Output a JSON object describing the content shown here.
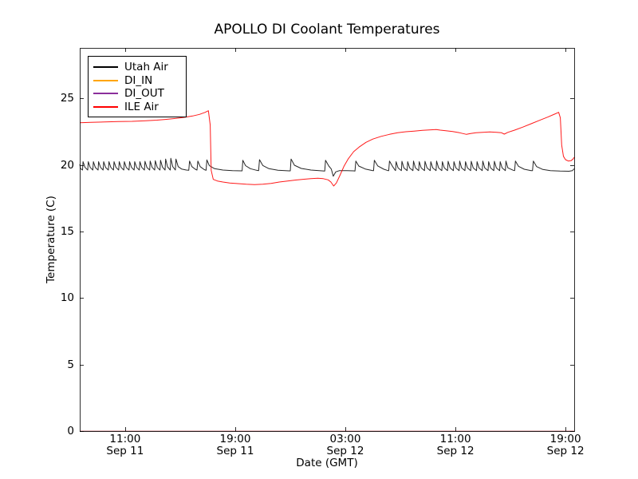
{
  "window": {
    "background": "#ffffff"
  },
  "chart_data": {
    "type": "line",
    "title": "APOLLO DI Coolant Temperatures",
    "xlabel": "Date (GMT)",
    "ylabel": "Temperature (C)",
    "x_units": "hours since Sep 11 00:00 GMT",
    "y_units": "degrees C",
    "xlim": [
      7.7,
      43.63
    ],
    "ylim": [
      0,
      28.8
    ],
    "grid": false,
    "frame_color": "#000000",
    "legend": {
      "position": "upper-left",
      "entries": [
        "Utah Air",
        "DI_IN",
        "DI_OUT",
        "ILE Air"
      ]
    },
    "x_ticks": [
      {
        "t": 11,
        "time": "11:00",
        "date": "Sep 11"
      },
      {
        "t": 19,
        "time": "19:00",
        "date": "Sep 11"
      },
      {
        "t": 27,
        "time": "03:00",
        "date": "Sep 12"
      },
      {
        "t": 35,
        "time": "11:00",
        "date": "Sep 12"
      },
      {
        "t": 43,
        "time": "19:00",
        "date": "Sep 12"
      }
    ],
    "y_ticks": [
      0,
      5,
      10,
      15,
      20,
      25
    ],
    "series": [
      {
        "name": "Utah Air",
        "color": "#000000",
        "width": 1,
        "opacity": 0.85,
        "points": [
          [
            7.7,
            20.05
          ],
          [
            7.76,
            19.72
          ],
          [
            7.9,
            19.62
          ],
          [
            7.94,
            20.25
          ],
          [
            8.08,
            19.82
          ],
          [
            8.28,
            19.62
          ],
          [
            8.32,
            20.25
          ],
          [
            8.46,
            19.82
          ],
          [
            8.65,
            19.62
          ],
          [
            8.69,
            20.25
          ],
          [
            8.83,
            19.82
          ],
          [
            9.03,
            19.62
          ],
          [
            9.07,
            20.25
          ],
          [
            9.21,
            19.82
          ],
          [
            9.4,
            19.62
          ],
          [
            9.44,
            20.25
          ],
          [
            9.58,
            19.82
          ],
          [
            9.78,
            19.62
          ],
          [
            9.82,
            20.25
          ],
          [
            9.96,
            19.82
          ],
          [
            10.15,
            19.62
          ],
          [
            10.19,
            20.25
          ],
          [
            10.33,
            19.82
          ],
          [
            10.53,
            19.62
          ],
          [
            10.57,
            20.25
          ],
          [
            10.71,
            19.82
          ],
          [
            10.9,
            19.62
          ],
          [
            10.94,
            20.25
          ],
          [
            11.08,
            19.82
          ],
          [
            11.28,
            19.62
          ],
          [
            11.32,
            20.25
          ],
          [
            11.46,
            19.82
          ],
          [
            11.65,
            19.62
          ],
          [
            11.69,
            20.25
          ],
          [
            11.83,
            19.82
          ],
          [
            12.03,
            19.62
          ],
          [
            12.07,
            20.25
          ],
          [
            12.21,
            19.82
          ],
          [
            12.4,
            19.62
          ],
          [
            12.44,
            20.28
          ],
          [
            12.58,
            19.82
          ],
          [
            12.78,
            19.62
          ],
          [
            12.82,
            20.3
          ],
          [
            12.96,
            19.82
          ],
          [
            13.15,
            19.62
          ],
          [
            13.19,
            20.32
          ],
          [
            13.33,
            19.82
          ],
          [
            13.53,
            19.62
          ],
          [
            13.57,
            20.35
          ],
          [
            13.71,
            19.84
          ],
          [
            13.9,
            19.62
          ],
          [
            13.94,
            20.45
          ],
          [
            14.08,
            19.86
          ],
          [
            14.28,
            19.62
          ],
          [
            14.32,
            20.5
          ],
          [
            14.46,
            19.88
          ],
          [
            14.65,
            19.62
          ],
          [
            14.69,
            20.45
          ],
          [
            14.85,
            19.88
          ],
          [
            15.1,
            19.7
          ],
          [
            15.45,
            19.62
          ],
          [
            15.62,
            19.6
          ],
          [
            15.68,
            20.3
          ],
          [
            15.85,
            19.88
          ],
          [
            16.1,
            19.68
          ],
          [
            16.22,
            19.62
          ],
          [
            16.28,
            20.3
          ],
          [
            16.45,
            19.88
          ],
          [
            16.75,
            19.65
          ],
          [
            16.88,
            19.6
          ],
          [
            16.94,
            20.38
          ],
          [
            17.12,
            19.95
          ],
          [
            17.5,
            19.72
          ],
          [
            18.1,
            19.62
          ],
          [
            18.8,
            19.58
          ],
          [
            19.45,
            19.56
          ],
          [
            19.5,
            19.56
          ],
          [
            19.55,
            20.35
          ],
          [
            19.75,
            19.95
          ],
          [
            20.1,
            19.72
          ],
          [
            20.55,
            19.6
          ],
          [
            20.7,
            19.57
          ],
          [
            20.76,
            20.4
          ],
          [
            21.0,
            19.96
          ],
          [
            21.45,
            19.72
          ],
          [
            22.1,
            19.6
          ],
          [
            22.9,
            19.56
          ],
          [
            23.0,
            19.56
          ],
          [
            23.06,
            20.45
          ],
          [
            23.3,
            19.98
          ],
          [
            23.8,
            19.74
          ],
          [
            24.5,
            19.62
          ],
          [
            25.3,
            19.56
          ],
          [
            25.5,
            19.55
          ],
          [
            25.56,
            20.35
          ],
          [
            25.8,
            19.92
          ],
          [
            25.98,
            19.7
          ],
          [
            26.12,
            19.15
          ],
          [
            26.3,
            19.48
          ],
          [
            26.55,
            19.57
          ],
          [
            27.1,
            19.57
          ],
          [
            27.6,
            19.56
          ],
          [
            27.7,
            19.55
          ],
          [
            27.76,
            20.3
          ],
          [
            27.98,
            19.92
          ],
          [
            28.45,
            19.7
          ],
          [
            29.0,
            19.58
          ],
          [
            29.05,
            19.57
          ],
          [
            29.11,
            20.35
          ],
          [
            29.35,
            19.93
          ],
          [
            29.8,
            19.68
          ],
          [
            30.1,
            19.58
          ],
          [
            30.15,
            19.57
          ],
          [
            30.21,
            20.3
          ],
          [
            30.42,
            19.9
          ],
          [
            30.61,
            19.62
          ],
          [
            30.65,
            19.58
          ],
          [
            30.69,
            20.25
          ],
          [
            30.83,
            19.79
          ],
          [
            31.07,
            19.58
          ],
          [
            31.11,
            20.28
          ],
          [
            31.25,
            19.79
          ],
          [
            31.49,
            19.58
          ],
          [
            31.53,
            20.25
          ],
          [
            31.67,
            19.79
          ],
          [
            31.91,
            19.58
          ],
          [
            31.95,
            20.3
          ],
          [
            32.09,
            19.79
          ],
          [
            32.33,
            19.58
          ],
          [
            32.37,
            20.25
          ],
          [
            32.51,
            19.79
          ],
          [
            32.75,
            19.58
          ],
          [
            32.79,
            20.28
          ],
          [
            32.93,
            19.79
          ],
          [
            33.17,
            19.58
          ],
          [
            33.21,
            20.25
          ],
          [
            33.35,
            19.79
          ],
          [
            33.59,
            19.58
          ],
          [
            33.63,
            20.3
          ],
          [
            33.77,
            19.79
          ],
          [
            34.01,
            19.58
          ],
          [
            34.05,
            20.25
          ],
          [
            34.19,
            19.79
          ],
          [
            34.43,
            19.58
          ],
          [
            34.47,
            20.28
          ],
          [
            34.61,
            19.79
          ],
          [
            34.85,
            19.58
          ],
          [
            34.89,
            20.25
          ],
          [
            35.03,
            19.79
          ],
          [
            35.27,
            19.58
          ],
          [
            35.31,
            20.3
          ],
          [
            35.45,
            19.79
          ],
          [
            35.69,
            19.58
          ],
          [
            35.73,
            20.25
          ],
          [
            35.87,
            19.79
          ],
          [
            36.11,
            19.58
          ],
          [
            36.15,
            20.28
          ],
          [
            36.29,
            19.79
          ],
          [
            36.53,
            19.58
          ],
          [
            36.57,
            20.25
          ],
          [
            36.71,
            19.79
          ],
          [
            36.95,
            19.58
          ],
          [
            36.99,
            20.3
          ],
          [
            37.13,
            19.79
          ],
          [
            37.37,
            19.58
          ],
          [
            37.41,
            20.25
          ],
          [
            37.55,
            19.79
          ],
          [
            37.79,
            19.58
          ],
          [
            37.83,
            20.28
          ],
          [
            37.97,
            19.79
          ],
          [
            38.21,
            19.58
          ],
          [
            38.25,
            20.25
          ],
          [
            38.39,
            19.79
          ],
          [
            38.63,
            19.58
          ],
          [
            38.67,
            20.3
          ],
          [
            38.81,
            19.79
          ],
          [
            38.95,
            19.72
          ],
          [
            39.2,
            19.6
          ],
          [
            39.3,
            19.58
          ],
          [
            39.36,
            20.3
          ],
          [
            39.58,
            19.9
          ],
          [
            40.0,
            19.68
          ],
          [
            40.5,
            19.58
          ],
          [
            40.6,
            19.57
          ],
          [
            40.66,
            20.3
          ],
          [
            40.9,
            19.88
          ],
          [
            41.35,
            19.66
          ],
          [
            41.9,
            19.57
          ],
          [
            42.6,
            19.54
          ],
          [
            43.25,
            19.53
          ],
          [
            43.5,
            19.58
          ],
          [
            43.63,
            19.72
          ]
        ]
      },
      {
        "name": "DI_IN",
        "color": "#ffa500",
        "width": 1.2,
        "opacity": 0.45,
        "points": [
          [
            7.7,
            0
          ],
          [
            43.63,
            0
          ]
        ]
      },
      {
        "name": "DI_OUT",
        "color": "#8b2f9b",
        "width": 1.2,
        "opacity": 0.45,
        "points": [
          [
            7.7,
            0
          ],
          [
            43.63,
            0
          ]
        ]
      },
      {
        "name": "ILE Air",
        "color": "#ff0000",
        "width": 1,
        "opacity": 0.9,
        "points": [
          [
            7.7,
            23.18
          ],
          [
            8.5,
            23.2
          ],
          [
            9.5,
            23.23
          ],
          [
            10.5,
            23.26
          ],
          [
            11.5,
            23.28
          ],
          [
            12.5,
            23.32
          ],
          [
            13.3,
            23.37
          ],
          [
            14.0,
            23.43
          ],
          [
            14.7,
            23.5
          ],
          [
            15.3,
            23.58
          ],
          [
            15.9,
            23.68
          ],
          [
            16.4,
            23.8
          ],
          [
            16.8,
            23.95
          ],
          [
            17.05,
            24.08
          ],
          [
            17.18,
            23.0
          ],
          [
            17.25,
            19.6
          ],
          [
            17.4,
            18.92
          ],
          [
            17.7,
            18.8
          ],
          [
            18.1,
            18.72
          ],
          [
            18.6,
            18.65
          ],
          [
            19.2,
            18.6
          ],
          [
            19.8,
            18.55
          ],
          [
            20.4,
            18.53
          ],
          [
            21.0,
            18.55
          ],
          [
            21.6,
            18.62
          ],
          [
            22.2,
            18.72
          ],
          [
            22.8,
            18.8
          ],
          [
            23.4,
            18.87
          ],
          [
            24.0,
            18.93
          ],
          [
            24.5,
            18.98
          ],
          [
            25.0,
            19.0
          ],
          [
            25.4,
            18.97
          ],
          [
            25.75,
            18.88
          ],
          [
            25.95,
            18.72
          ],
          [
            26.15,
            18.42
          ],
          [
            26.35,
            18.65
          ],
          [
            26.6,
            19.2
          ],
          [
            26.9,
            19.9
          ],
          [
            27.2,
            20.45
          ],
          [
            27.6,
            21.0
          ],
          [
            28.0,
            21.35
          ],
          [
            28.5,
            21.7
          ],
          [
            29.0,
            21.95
          ],
          [
            29.6,
            22.15
          ],
          [
            30.2,
            22.3
          ],
          [
            30.8,
            22.42
          ],
          [
            31.4,
            22.5
          ],
          [
            32.0,
            22.55
          ],
          [
            32.6,
            22.6
          ],
          [
            33.1,
            22.63
          ],
          [
            33.6,
            22.67
          ],
          [
            33.9,
            22.62
          ],
          [
            34.3,
            22.57
          ],
          [
            34.8,
            22.52
          ],
          [
            35.3,
            22.42
          ],
          [
            35.8,
            22.3
          ],
          [
            36.1,
            22.36
          ],
          [
            36.5,
            22.42
          ],
          [
            37.0,
            22.46
          ],
          [
            37.5,
            22.48
          ],
          [
            38.0,
            22.46
          ],
          [
            38.35,
            22.42
          ],
          [
            38.55,
            22.32
          ],
          [
            38.8,
            22.45
          ],
          [
            39.3,
            22.62
          ],
          [
            39.9,
            22.85
          ],
          [
            40.5,
            23.1
          ],
          [
            41.1,
            23.35
          ],
          [
            41.7,
            23.6
          ],
          [
            42.2,
            23.82
          ],
          [
            42.5,
            23.96
          ],
          [
            42.62,
            23.55
          ],
          [
            42.72,
            21.5
          ],
          [
            42.85,
            20.65
          ],
          [
            43.0,
            20.4
          ],
          [
            43.2,
            20.3
          ],
          [
            43.4,
            20.32
          ],
          [
            43.55,
            20.45
          ],
          [
            43.63,
            20.58
          ]
        ]
      }
    ]
  }
}
